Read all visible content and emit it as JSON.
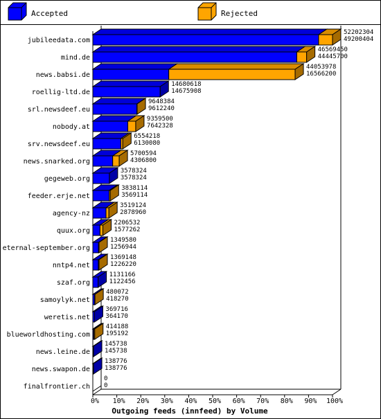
{
  "chart_data": {
    "type": "bar",
    "orientation": "horizontal",
    "stacked": true,
    "three_d": true,
    "xlabel": "Outgoing feeds (innfeed) by Volume",
    "xlim_percent": [
      0,
      100
    ],
    "x_ticks": [
      "0%",
      "10%",
      "20%",
      "30%",
      "40%",
      "50%",
      "60%",
      "70%",
      "80%",
      "90%",
      "100%"
    ],
    "legend_placement": "top",
    "colors": {
      "accepted": "#0000ff",
      "rejected": "#ffa500",
      "other": "#a87b2c"
    },
    "series": [
      {
        "name": "Accepted",
        "color": "#0000ff"
      },
      {
        "name": "Rejected",
        "color": "#ffa500"
      }
    ],
    "categories": [
      "jubileedata.com",
      "mind.de",
      "news.babsi.de",
      "roellig-ltd.de",
      "srl.newsdeef.eu",
      "nobody.at",
      "srv.newsdeef.eu",
      "news.snarked.org",
      "gegeweb.org",
      "feeder.erje.net",
      "agency-nz",
      "quux.org",
      "eternal-september.org",
      "nntp4.net",
      "szaf.org",
      "samoylyk.net",
      "weretis.net",
      "blueworldhosting.com",
      "news.leine.de",
      "news.swapon.de",
      "finalfrontier.ch"
    ],
    "rows": [
      {
        "site": "jubileedata.com",
        "total": "52202304",
        "accepted": "49200404"
      },
      {
        "site": "mind.de",
        "total": "46569450",
        "accepted": "44445700"
      },
      {
        "site": "news.babsi.de",
        "total": "44053978",
        "accepted": "16566200"
      },
      {
        "site": "roellig-ltd.de",
        "total": "14680618",
        "accepted": "14675908"
      },
      {
        "site": "srl.newsdeef.eu",
        "total": "9648384",
        "accepted": "9612240"
      },
      {
        "site": "nobody.at",
        "total": "9359500",
        "accepted": "7642328"
      },
      {
        "site": "srv.newsdeef.eu",
        "total": "6554218",
        "accepted": "6130080"
      },
      {
        "site": "news.snarked.org",
        "total": "5700594",
        "accepted": "4306800"
      },
      {
        "site": "gegeweb.org",
        "total": "3578324",
        "accepted": "3578324"
      },
      {
        "site": "feeder.erje.net",
        "total": "3838114",
        "accepted": "3569114"
      },
      {
        "site": "agency-nz",
        "total": "3519124",
        "accepted": "2878960"
      },
      {
        "site": "quux.org",
        "total": "2206532",
        "accepted": "1577262"
      },
      {
        "site": "eternal-september.org",
        "total": "1349580",
        "accepted": "1256944"
      },
      {
        "site": "nntp4.net",
        "total": "1369148",
        "accepted": "1226220"
      },
      {
        "site": "szaf.org",
        "total": "1131166",
        "accepted": "1122456"
      },
      {
        "site": "samoylyk.net",
        "total": "480072",
        "accepted": "418270"
      },
      {
        "site": "weretis.net",
        "total": "369716",
        "accepted": "364170"
      },
      {
        "site": "blueworldhosting.com",
        "total": "414188",
        "accepted": "195192"
      },
      {
        "site": "news.leine.de",
        "total": "145738",
        "accepted": "145738"
      },
      {
        "site": "news.swapon.de",
        "total": "138776",
        "accepted": "138776"
      },
      {
        "site": "finalfrontier.ch",
        "total": "0",
        "accepted": "0"
      }
    ],
    "visual_percent": [
      {
        "accepted": 94.2,
        "rejected": 5.8
      },
      {
        "accepted": 85.1,
        "rejected": 4.1
      },
      {
        "accepted": 31.7,
        "rejected": 52.7
      },
      {
        "accepted": 28.1,
        "rejected": 0.0
      },
      {
        "accepted": 18.4,
        "rejected": 0.1
      },
      {
        "accepted": 14.6,
        "rejected": 3.3
      },
      {
        "accepted": 11.7,
        "rejected": 0.8
      },
      {
        "accepted": 8.3,
        "rejected": 2.7
      },
      {
        "accepted": 6.9,
        "rejected": 0.0
      },
      {
        "accepted": 6.8,
        "rejected": 0.5
      },
      {
        "accepted": 5.5,
        "rejected": 1.2
      },
      {
        "accepted": 3.0,
        "rejected": 1.2
      },
      {
        "accepted": 2.4,
        "rejected": 0.2
      },
      {
        "accepted": 2.3,
        "rejected": 0.3
      },
      {
        "accepted": 2.2,
        "rejected": 0.0
      },
      {
        "accepted": 0.8,
        "rejected": 0.1
      },
      {
        "accepted": 0.7,
        "rejected": 0.0
      },
      {
        "accepted": 0.4,
        "rejected": 0.4
      },
      {
        "accepted": 0.3,
        "rejected": 0.0
      },
      {
        "accepted": 0.3,
        "rejected": 0.0
      },
      {
        "accepted": 0.0,
        "rejected": 0.0
      }
    ]
  }
}
